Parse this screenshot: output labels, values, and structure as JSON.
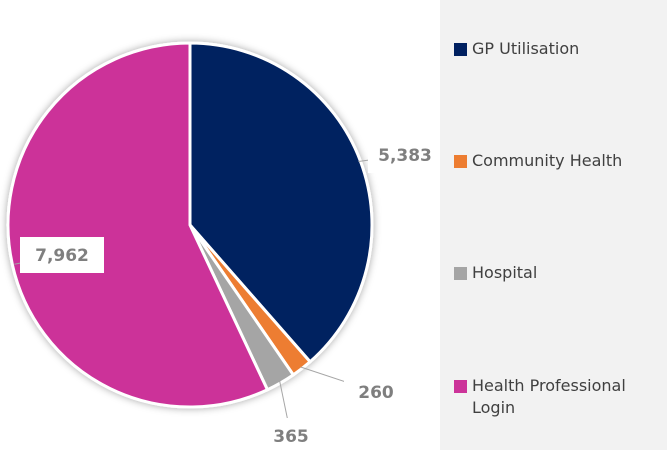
{
  "chart_data": {
    "type": "pie",
    "categories": [
      "GP Utilisation",
      "Community Health",
      "Hospital",
      "Health Professional Login"
    ],
    "values": [
      5383,
      260,
      365,
      7962
    ],
    "value_labels": [
      "5,383",
      "260",
      "365",
      "7,962"
    ],
    "colors": [
      "#002060",
      "#ed7d31",
      "#a5a5a5",
      "#cc3399"
    ],
    "legend": "right"
  }
}
